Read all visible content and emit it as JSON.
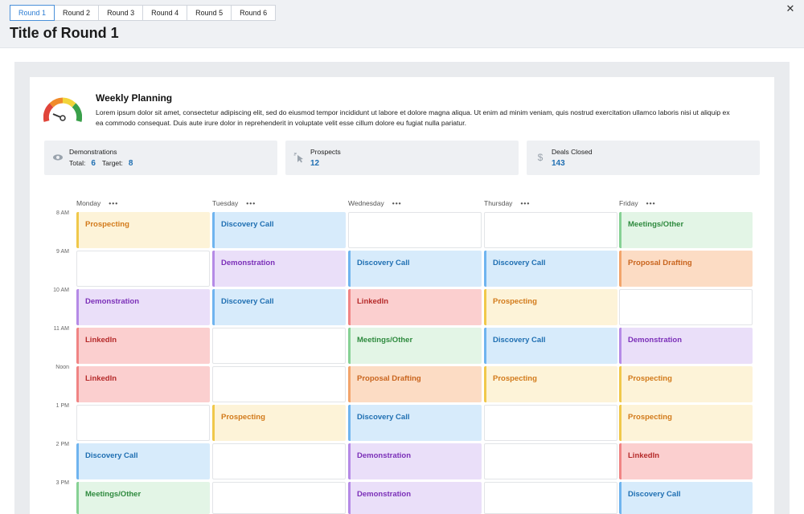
{
  "tabs": [
    {
      "label": "Round 1",
      "active": true
    },
    {
      "label": "Round 2",
      "active": false
    },
    {
      "label": "Round 3",
      "active": false
    },
    {
      "label": "Round 4",
      "active": false
    },
    {
      "label": "Round 5",
      "active": false
    },
    {
      "label": "Round 6",
      "active": false
    }
  ],
  "page_title": "Title of Round 1",
  "close_icon": "close-icon",
  "planning": {
    "title": "Weekly Planning",
    "description": "Lorem ipsum dolor sit amet, consectetur adipiscing elit, sed do eiusmod tempor incididunt ut labore et dolore magna aliqua. Ut enim ad minim veniam, quis nostrud exercitation ullamco laboris nisi ut aliquip ex ea commodo consequat. Duis aute irure dolor in reprehenderit in voluptate velit esse cillum dolore eu fugiat nulla pariatur.",
    "icon": "gauge-icon"
  },
  "stats": {
    "demonstrations": {
      "label": "Demonstrations",
      "total_label": "Total:",
      "total": "6",
      "target_label": "Target:",
      "target": "8",
      "icon": "eye-icon"
    },
    "prospects": {
      "label": "Prospects",
      "value": "12",
      "icon": "cursor-click-icon"
    },
    "deals": {
      "label": "Deals Closed",
      "value": "143",
      "icon": "dollar-icon"
    }
  },
  "times": [
    "8 AM",
    "9 AM",
    "10 AM",
    "11 AM",
    "Noon",
    "1 PM",
    "2 PM",
    "3 PM"
  ],
  "days": [
    {
      "name": "Monday",
      "slots": [
        "Prospecting",
        "",
        "Demonstration",
        "LinkedIn",
        "LinkedIn",
        "",
        "Discovery Call",
        "Meetings/Other"
      ]
    },
    {
      "name": "Tuesday",
      "slots": [
        "Discovery Call",
        "Demonstration",
        "Discovery Call",
        "",
        "",
        "Prospecting",
        "",
        ""
      ]
    },
    {
      "name": "Wednesday",
      "slots": [
        "",
        "Discovery Call",
        "LinkedIn",
        "Meetings/Other",
        "Proposal Drafting",
        "Discovery Call",
        "Demonstration",
        "Demonstration"
      ]
    },
    {
      "name": "Thursday",
      "slots": [
        "",
        "Discovery Call",
        "Prospecting",
        "Discovery Call",
        "Prospecting",
        "",
        "",
        ""
      ]
    },
    {
      "name": "Friday",
      "slots": [
        "Meetings/Other",
        "Proposal Drafting",
        "",
        "Demonstration",
        "Prospecting",
        "Prospecting",
        "LinkedIn",
        "Discovery Call"
      ]
    }
  ],
  "colors": {
    "Prospecting": "#fdf3d8",
    "Discovery Call": "#d7ebfb",
    "Meetings/Other": "#e3f5e6",
    "Demonstration": "#eadff9",
    "Proposal Drafting": "#fcdcc4",
    "LinkedIn": "#fbcfcf",
    "accent": "#2b7cd3"
  }
}
